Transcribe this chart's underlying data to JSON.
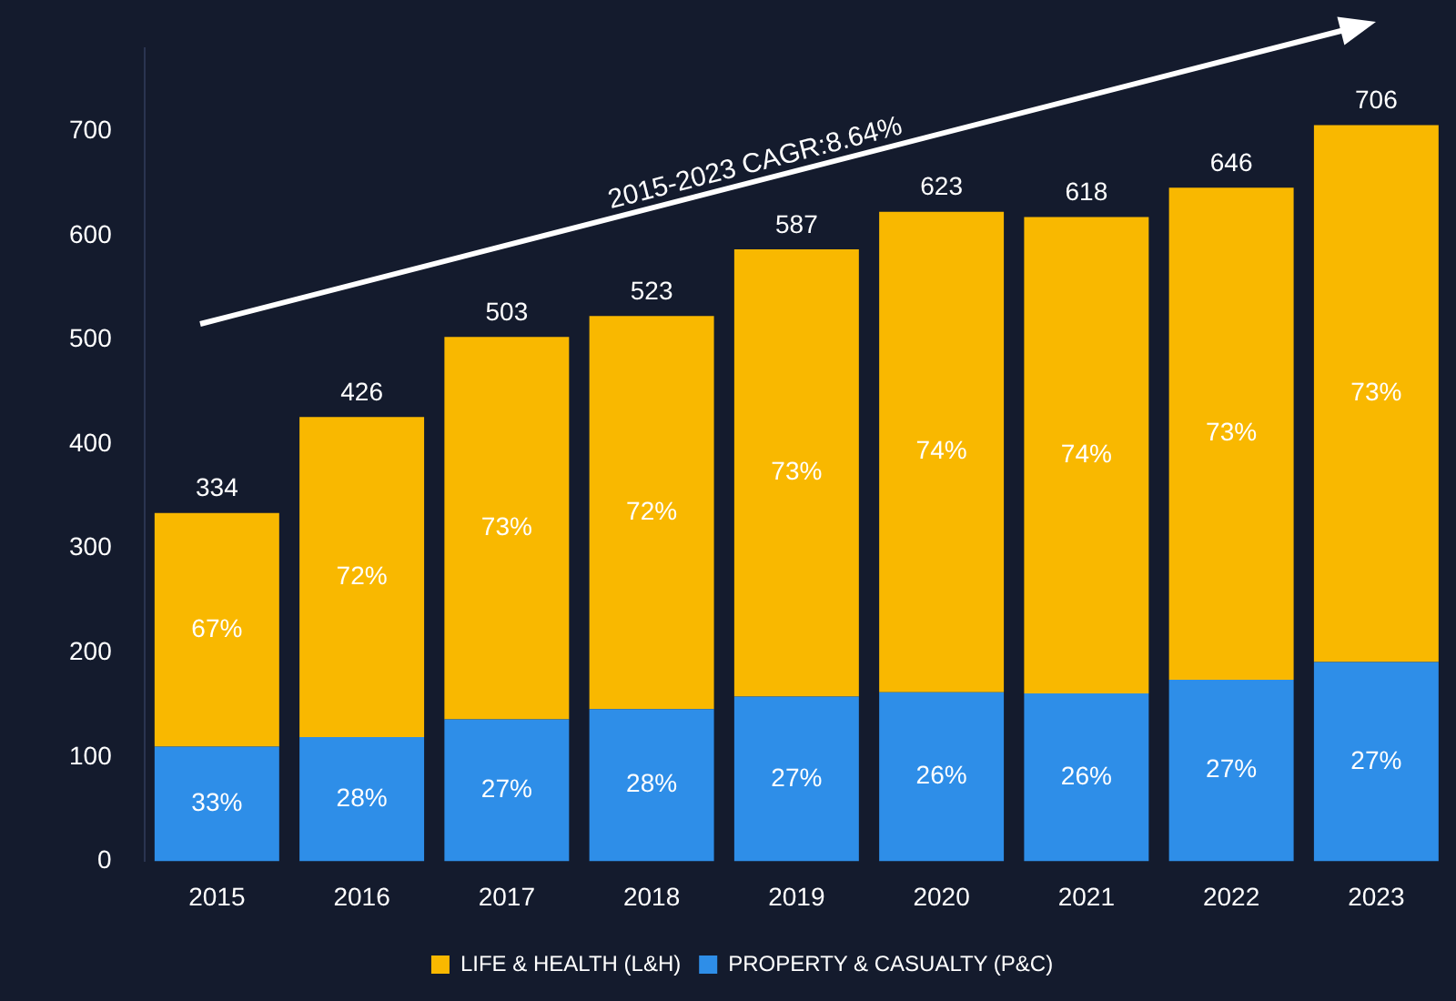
{
  "chart_data": {
    "type": "bar",
    "stacked": true,
    "categories": [
      "2015",
      "2016",
      "2017",
      "2018",
      "2019",
      "2020",
      "2021",
      "2022",
      "2023"
    ],
    "series": [
      {
        "name": "PROPERTY & CASUALTY (P&C)",
        "color": "#2e8ee8",
        "values": [
          110,
          119,
          136,
          146,
          158,
          162,
          161,
          174,
          191
        ]
      },
      {
        "name": "LIFE & HEALTH (L&H)",
        "color": "#f9b800",
        "values": [
          224,
          307,
          367,
          377,
          429,
          461,
          457,
          472,
          515
        ]
      }
    ],
    "totals": [
      "334",
      "426",
      "503",
      "523",
      "587",
      "623",
      "618",
      "646",
      "706"
    ],
    "ylim": [
      0,
      780
    ],
    "yticks": [
      0,
      100,
      200,
      300,
      400,
      500,
      600,
      700
    ],
    "grid": false,
    "legend": "bottom",
    "annotations": [
      "2015-2023 CAGR:8.64%",
      "33%",
      "28%",
      "27%",
      "28%",
      "27%",
      "26%",
      "26%",
      "27%",
      "27%",
      "67%",
      "72%",
      "73%",
      "72%",
      "73%",
      "74%",
      "74%",
      "73%",
      "73%"
    ]
  }
}
